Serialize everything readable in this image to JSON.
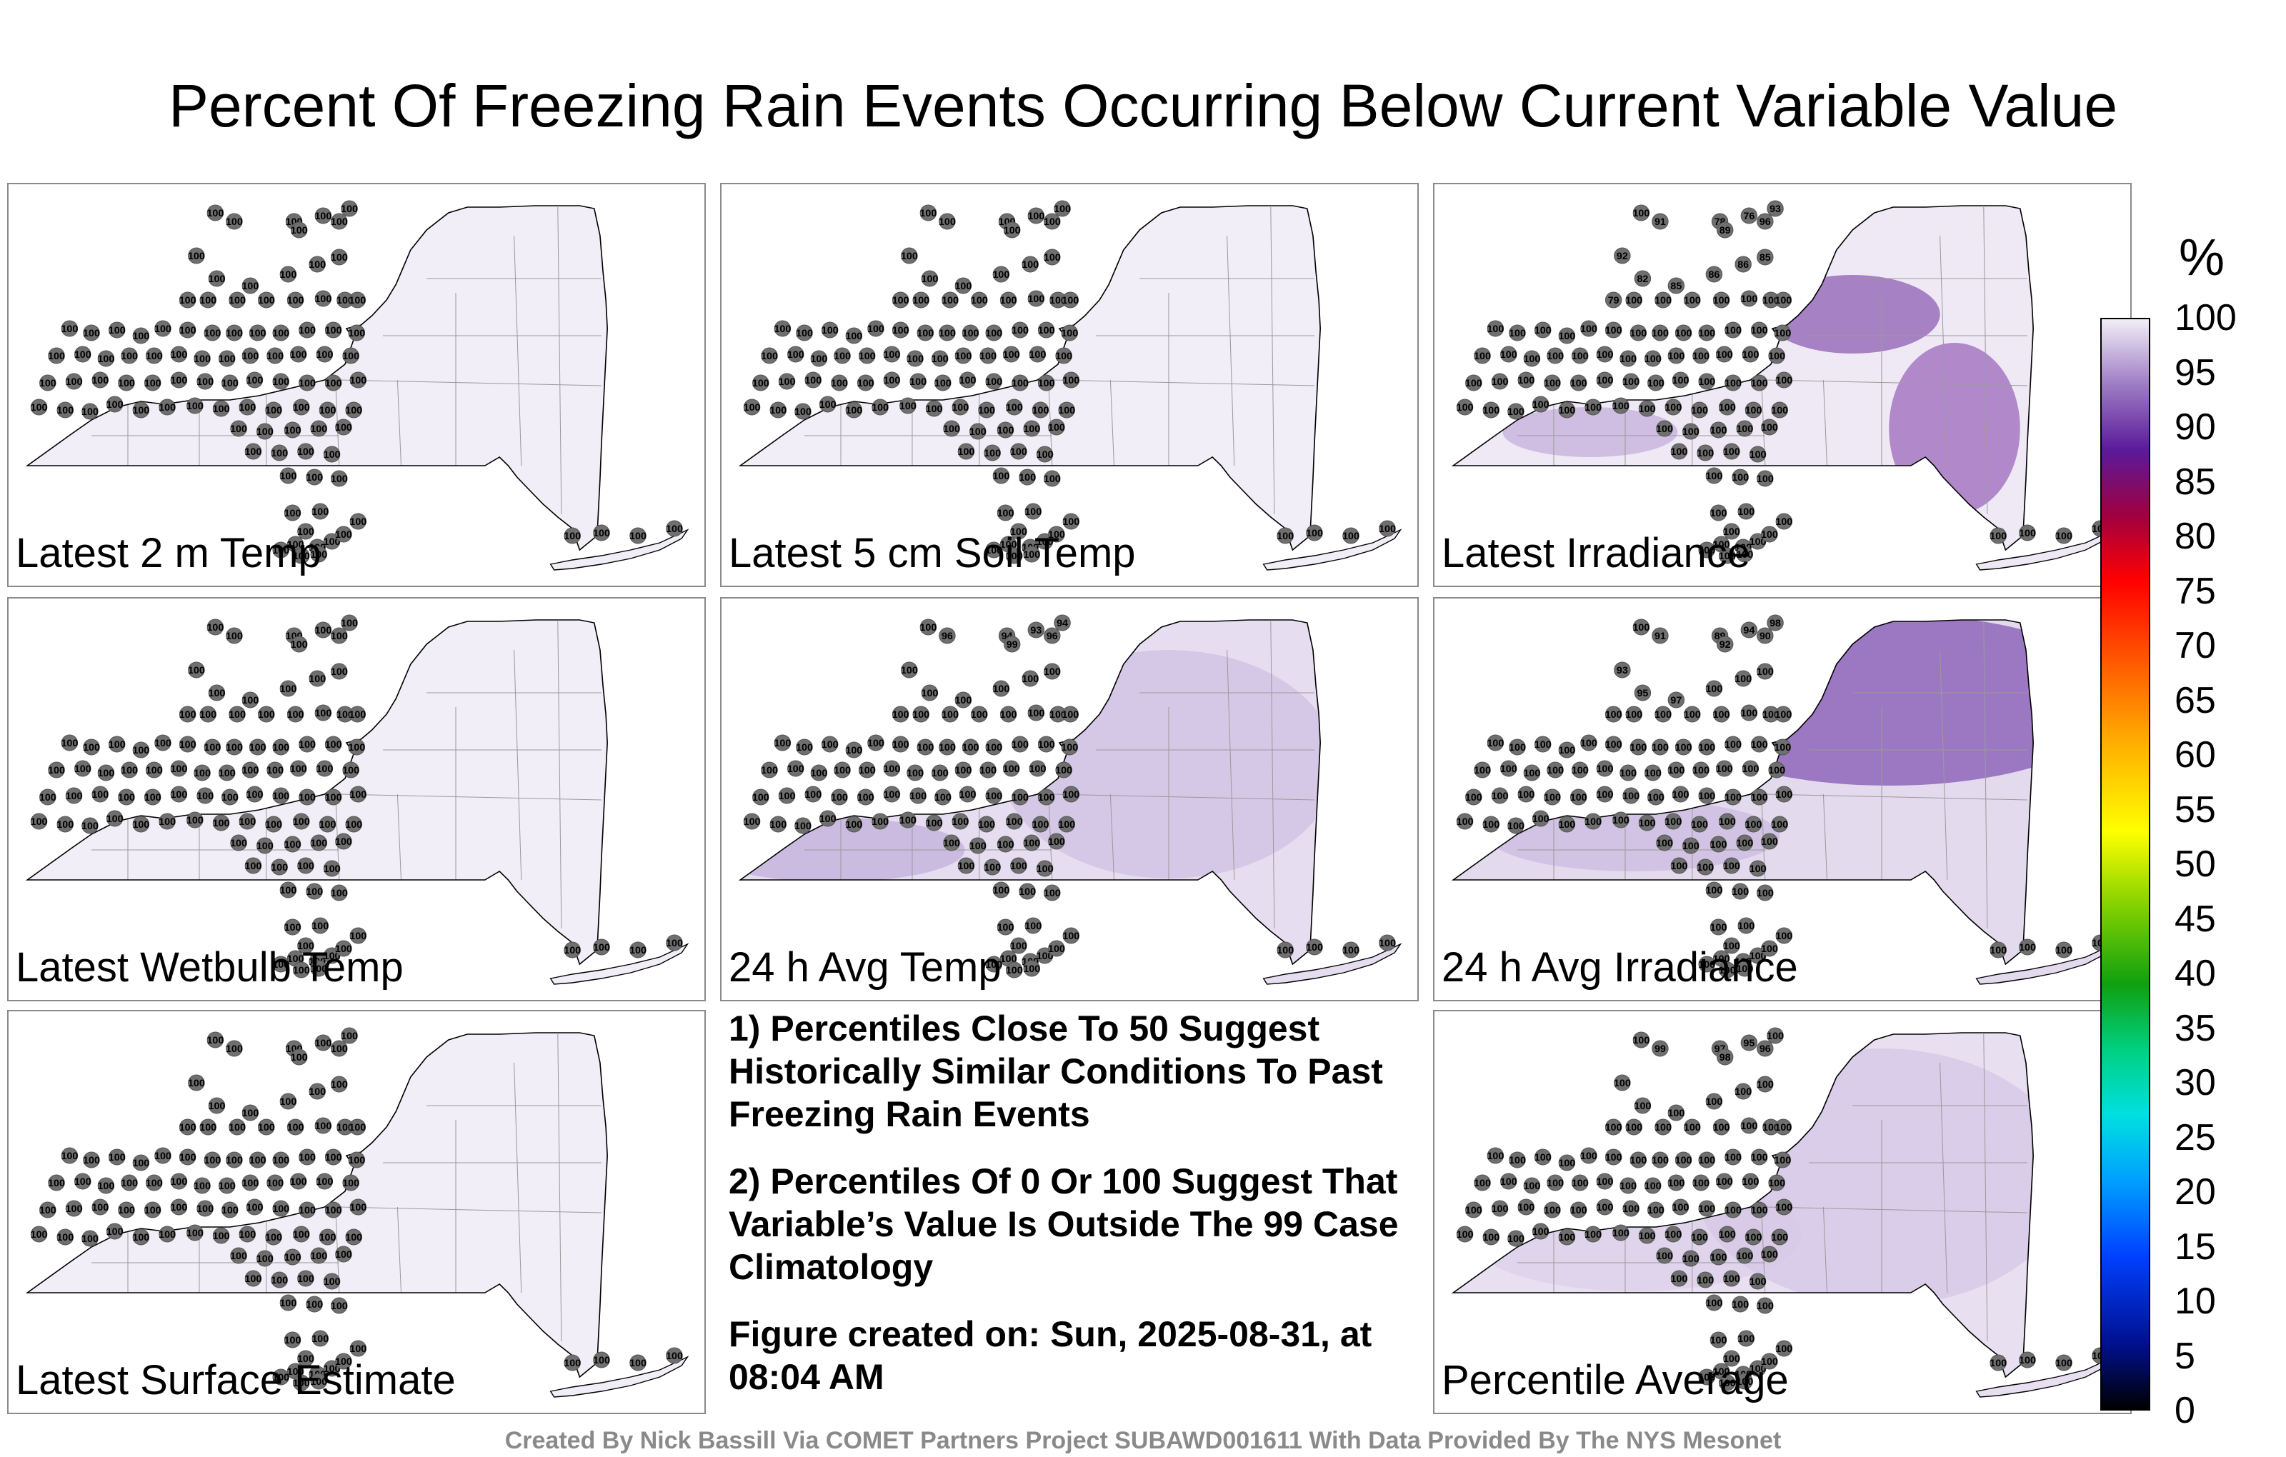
{
  "title": "Percent Of Freezing Rain Events Occurring Below Current Variable Value",
  "panels": [
    {
      "label": "Latest 2 m Temp",
      "fill": "#f2eef7",
      "zones": []
    },
    {
      "label": "Latest 5 cm Soil Temp",
      "fill": "#f2eef7",
      "zones": []
    },
    {
      "label": "Latest Irradiance",
      "fill": "#efe9f5",
      "zones": [
        {
          "c": "#6a2c9a"
        },
        {
          "c": "#7d3aa8"
        },
        {
          "c": "#b59ad2"
        }
      ]
    },
    {
      "label": "Latest Wetbulb Temp",
      "fill": "#f2eef7",
      "zones": []
    },
    {
      "label": "24 h Avg Temp",
      "fill": "#e6def0",
      "zones": [
        {
          "c": "#b69fd3"
        },
        {
          "c": "#c7b6de"
        }
      ]
    },
    {
      "label": "24 h Avg Irradiance",
      "fill": "#e3daee",
      "zones": [
        {
          "c": "#6228a0"
        },
        {
          "c": "#c4b0dc"
        }
      ]
    },
    {
      "label": "Latest Surface Estimate",
      "fill": "#f2eef7",
      "zones": []
    },
    {
      "label": "Percentile Average",
      "fill": "#e8e0f1",
      "zones": [
        {
          "c": "#cdbde2"
        },
        {
          "c": "#d8cbe7"
        }
      ]
    }
  ],
  "station_values": [
    [
      "100"
    ],
    [
      "100"
    ],
    [
      "100",
      "91",
      "78",
      "89",
      "76",
      "96",
      "93",
      "92",
      "82",
      "85",
      "86",
      "86",
      "85",
      "79"
    ],
    [
      "100"
    ],
    [
      "100",
      "96",
      "94",
      "99",
      "93",
      "96",
      "94"
    ],
    [
      "100",
      "91",
      "89",
      "92",
      "94",
      "90",
      "98",
      "93",
      "95",
      "97"
    ],
    [
      "100"
    ],
    [
      "100",
      "99",
      "97",
      "98",
      "95",
      "96"
    ]
  ],
  "notes": [
    "1) Percentiles Close To 50 Suggest Historically Similar Conditions To Past Freezing Rain Events",
    "2) Percentiles Of 0 Or 100 Suggest That Variable’s Value Is Outside The 99 Case Climatology",
    "Figure created on: Sun, 2025-08-31, at 08:04 AM"
  ],
  "colorbar": {
    "unit": "%",
    "ticks": [
      "100",
      "95",
      "90",
      "85",
      "80",
      "75",
      "70",
      "65",
      "60",
      "55",
      "50",
      "45",
      "40",
      "35",
      "30",
      "25",
      "20",
      "15",
      "10",
      "5",
      "0"
    ],
    "min": 0,
    "max": 100
  },
  "credit": "Created By Nick Bassill Via COMET Partners Project SUBAWD001611 With Data Provided By The NYS Mesonet"
}
